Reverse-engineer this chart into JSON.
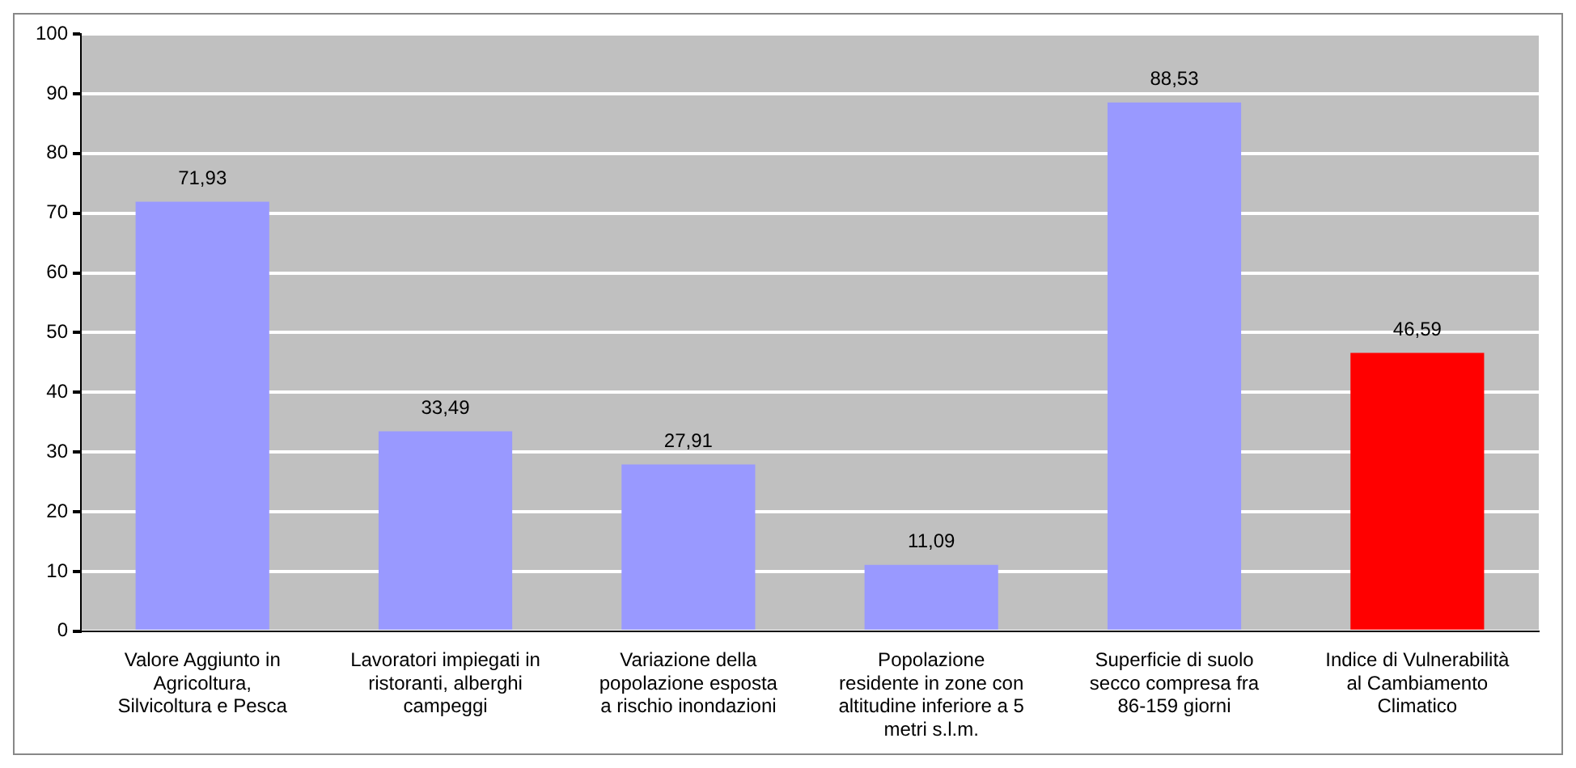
{
  "chart_data": {
    "type": "bar",
    "categories": [
      "Valore Aggiunto in Agricoltura, Silvicoltura e Pesca",
      "Lavoratori impiegati in ristoranti, alberghi campeggi",
      "Variazione della popolazione esposta a rischio inondazioni",
      "Popolazione residente in zone con altitudine inferiore a 5 metri s.l.m.",
      "Superficie di suolo secco compresa fra 86-159 giorni",
      "Indice di Vulnerabilità al Cambiamento Climatico"
    ],
    "values": [
      71.93,
      33.49,
      27.91,
      11.09,
      88.53,
      46.59
    ],
    "value_labels": [
      "71,93",
      "33,49",
      "27,91",
      "11,09",
      "88,53",
      "46,59"
    ],
    "colors": [
      "#9999ff",
      "#9999ff",
      "#9999ff",
      "#9999ff",
      "#9999ff",
      "#ff0000"
    ],
    "ylim": [
      0,
      100
    ],
    "yticks": [
      0,
      10,
      20,
      30,
      40,
      50,
      60,
      70,
      80,
      90,
      100
    ],
    "grid": "y",
    "legend": false
  }
}
